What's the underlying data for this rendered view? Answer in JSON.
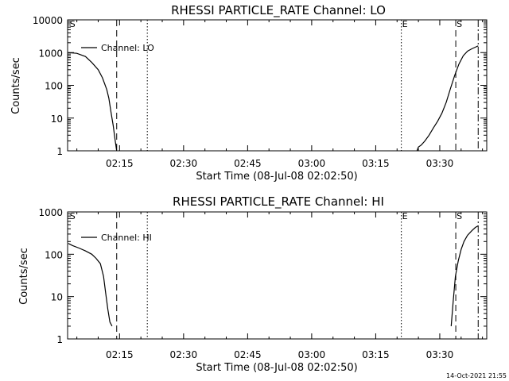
{
  "chart_data": [
    {
      "type": "line",
      "title": "RHESSI PARTICLE_RATE Channel: LO",
      "xlabel": "Start Time (08-Jul-08 02:02:50)",
      "ylabel": "Counts/sec",
      "yscale": "log",
      "ylim": [
        1,
        10000
      ],
      "xlim": [
        "02:02:50",
        "03:41:00"
      ],
      "xticks": [
        "02:15",
        "02:30",
        "02:45",
        "03:00",
        "03:15",
        "03:30"
      ],
      "yticks": [
        "1",
        "10",
        "100",
        "1000",
        "10000"
      ],
      "legend": {
        "location": "top-left",
        "entries": [
          "Channel: LO"
        ]
      },
      "series": [
        {
          "name": "Channel: LO",
          "segments": [
            [
              [
                "02:03:00",
                1000
              ],
              [
                "02:05:00",
                950
              ],
              [
                "02:07:00",
                760
              ],
              [
                "02:08:30",
                500
              ],
              [
                "02:10:00",
                300
              ],
              [
                "02:11:00",
                170
              ],
              [
                "02:12:00",
                75
              ],
              [
                "02:12:30",
                40
              ],
              [
                "02:13:00",
                15
              ],
              [
                "02:13:30",
                6
              ],
              [
                "02:14:00",
                2
              ],
              [
                "02:14:20",
                1
              ]
            ],
            [
              [
                "03:24:40",
                1
              ],
              [
                "03:25:00",
                1.3
              ],
              [
                "03:25:40",
                1.5
              ],
              [
                "03:26:30",
                2
              ],
              [
                "03:27:30",
                3
              ],
              [
                "03:28:30",
                5
              ],
              [
                "03:29:30",
                8
              ],
              [
                "03:30:30",
                14
              ],
              [
                "03:31:30",
                30
              ],
              [
                "03:32:30",
                80
              ],
              [
                "03:33:30",
                200
              ],
              [
                "03:34:30",
                450
              ],
              [
                "03:35:30",
                800
              ],
              [
                "03:36:30",
                1100
              ],
              [
                "03:37:30",
                1300
              ],
              [
                "03:38:30",
                1500
              ],
              [
                "03:39:00",
                1600
              ]
            ]
          ]
        }
      ],
      "markers": [
        {
          "label": "S",
          "time": "02:03:10",
          "style": "none"
        },
        {
          "time": "02:14:20",
          "style": "dashed"
        },
        {
          "time": "02:21:30",
          "style": "dotted"
        },
        {
          "label": "E",
          "time": "03:21:00",
          "style": "dotted"
        },
        {
          "label": "S",
          "time": "03:33:45",
          "style": "dashed"
        },
        {
          "time": "03:39:00",
          "style": "dashdot"
        }
      ]
    },
    {
      "type": "line",
      "title": "RHESSI PARTICLE_RATE Channel: HI",
      "xlabel": "Start Time (08-Jul-08 02:02:50)",
      "ylabel": "Counts/sec",
      "yscale": "log",
      "ylim": [
        1,
        1000
      ],
      "xlim": [
        "02:02:50",
        "03:41:00"
      ],
      "xticks": [
        "02:15",
        "02:30",
        "02:45",
        "03:00",
        "03:15",
        "03:30"
      ],
      "yticks": [
        "1",
        "10",
        "100",
        "1000"
      ],
      "legend": {
        "location": "top-left",
        "entries": [
          "Channel: HI"
        ]
      },
      "series": [
        {
          "name": "Channel: HI",
          "segments": [
            [
              [
                "02:03:00",
                180
              ],
              [
                "02:04:00",
                160
              ],
              [
                "02:05:30",
                140
              ],
              [
                "02:07:00",
                120
              ],
              [
                "02:08:30",
                100
              ],
              [
                "02:09:30",
                80
              ],
              [
                "02:10:30",
                60
              ],
              [
                "02:11:15",
                30
              ],
              [
                "02:11:45",
                12
              ],
              [
                "02:12:15",
                5
              ],
              [
                "02:12:45",
                2.5
              ],
              [
                "02:13:15",
                2
              ]
            ],
            [
              [
                "03:32:40",
                2
              ],
              [
                "03:33:10",
                8
              ],
              [
                "03:33:40",
                30
              ],
              [
                "03:34:20",
                70
              ],
              [
                "03:35:00",
                130
              ],
              [
                "03:35:40",
                200
              ],
              [
                "03:36:30",
                280
              ],
              [
                "03:37:30",
                360
              ],
              [
                "03:38:20",
                430
              ],
              [
                "03:39:00",
                470
              ]
            ]
          ]
        }
      ],
      "markers": [
        {
          "label": "S",
          "time": "02:03:10",
          "style": "none"
        },
        {
          "time": "02:14:20",
          "style": "dashed"
        },
        {
          "time": "02:21:30",
          "style": "dotted"
        },
        {
          "label": "E",
          "time": "03:21:00",
          "style": "dotted"
        },
        {
          "label": "S",
          "time": "03:33:45",
          "style": "dashed"
        },
        {
          "time": "03:39:00",
          "style": "dashdot"
        }
      ]
    }
  ],
  "timestamp": "14-Oct-2021 21:55"
}
